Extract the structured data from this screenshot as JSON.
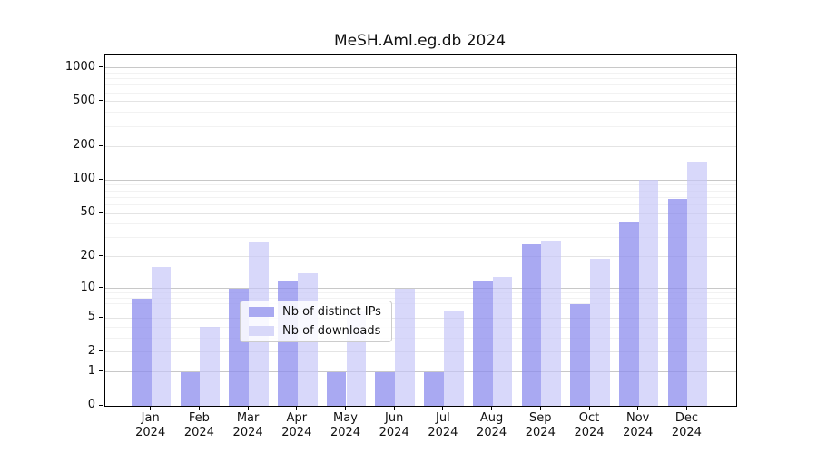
{
  "chart_data": {
    "type": "bar",
    "title": "MeSH.Aml.eg.db 2024",
    "categories": [
      "Jan",
      "Feb",
      "Mar",
      "Apr",
      "May",
      "Jun",
      "Jul",
      "Aug",
      "Sep",
      "Oct",
      "Nov",
      "Dec"
    ],
    "year_label": "2024",
    "series": [
      {
        "name": "Nb of distinct IPs",
        "color": "#a9a9f1",
        "values": [
          8,
          1,
          10,
          12,
          1,
          1,
          1,
          12,
          26,
          7,
          42,
          68
        ]
      },
      {
        "name": "Nb of downloads",
        "color": "#d8d8f9",
        "values": [
          16,
          4,
          27,
          14,
          6,
          10,
          6,
          13,
          28,
          19,
          100,
          145
        ]
      }
    ],
    "xlabel": "",
    "ylabel": "",
    "yscale": "log1p",
    "ylim": [
      0,
      1250
    ],
    "yticks": [
      0,
      1,
      2,
      5,
      10,
      20,
      50,
      100,
      200,
      500,
      1000
    ],
    "grid": "horizontal",
    "gridlines": {
      "major": [
        1,
        10,
        100,
        1000
      ],
      "mid": [
        2,
        5,
        20,
        50,
        200,
        500
      ],
      "minor": [
        3,
        4,
        6,
        7,
        8,
        9,
        30,
        40,
        60,
        70,
        80,
        90,
        300,
        400,
        600,
        700,
        800,
        900
      ]
    },
    "legend_position": "lower center"
  },
  "legend": {
    "items": [
      {
        "label": "Nb of distinct IPs",
        "color": "#a9a9f1"
      },
      {
        "label": "Nb of downloads",
        "color": "#d8d8f9"
      }
    ]
  }
}
